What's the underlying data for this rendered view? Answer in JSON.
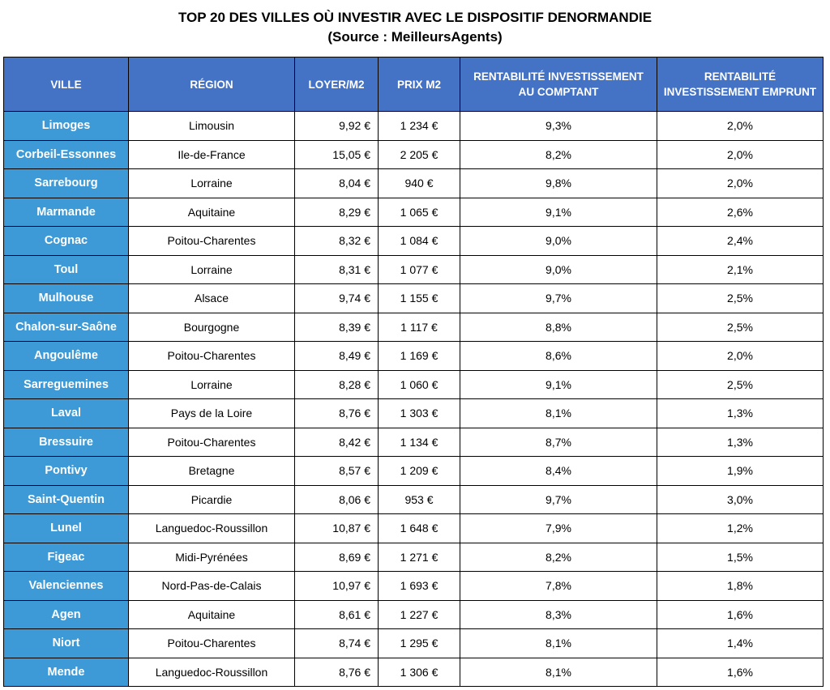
{
  "title": {
    "line1": "TOP 20 DES VILLES OÙ INVESTIR AVEC LE DISPOSITIF DENORMANDIE",
    "line2": "(Source : MeilleursAgents)"
  },
  "headers": {
    "ville": "VILLE",
    "region": "RÉGION",
    "loyer": "LOYER/M2",
    "prix": "PRIX M2",
    "comptant_line1": "RENTABILITÉ INVESTISSEMENT",
    "comptant_line2": "AU COMPTANT",
    "emprunt_line1": "RENTABILITÉ",
    "emprunt_line2": "INVESTISSEMENT EMPRUNT"
  },
  "colors": {
    "header_bg": "#4472c4",
    "city_bg": "#3d9ad6"
  },
  "rows": [
    {
      "ville": "Limoges",
      "region": "Limousin",
      "loyer": "9,92 €",
      "prix": "1 234 €",
      "comptant": "9,3%",
      "emprunt": "2,0%"
    },
    {
      "ville": "Corbeil-Essonnes",
      "region": "Ile-de-France",
      "loyer": "15,05 €",
      "prix": "2 205 €",
      "comptant": "8,2%",
      "emprunt": "2,0%"
    },
    {
      "ville": "Sarrebourg",
      "region": "Lorraine",
      "loyer": "8,04 €",
      "prix": "940 €",
      "comptant": "9,8%",
      "emprunt": "2,0%"
    },
    {
      "ville": "Marmande",
      "region": "Aquitaine",
      "loyer": "8,29 €",
      "prix": "1 065 €",
      "comptant": "9,1%",
      "emprunt": "2,6%"
    },
    {
      "ville": "Cognac",
      "region": "Poitou-Charentes",
      "loyer": "8,32 €",
      "prix": "1 084 €",
      "comptant": "9,0%",
      "emprunt": "2,4%"
    },
    {
      "ville": "Toul",
      "region": "Lorraine",
      "loyer": "8,31 €",
      "prix": "1 077 €",
      "comptant": "9,0%",
      "emprunt": "2,1%"
    },
    {
      "ville": "Mulhouse",
      "region": "Alsace",
      "loyer": "9,74 €",
      "prix": "1 155 €",
      "comptant": "9,7%",
      "emprunt": "2,5%"
    },
    {
      "ville": "Chalon-sur-Saône",
      "region": "Bourgogne",
      "loyer": "8,39 €",
      "prix": "1 117 €",
      "comptant": "8,8%",
      "emprunt": "2,5%"
    },
    {
      "ville": "Angoulême",
      "region": "Poitou-Charentes",
      "loyer": "8,49 €",
      "prix": "1 169 €",
      "comptant": "8,6%",
      "emprunt": "2,0%"
    },
    {
      "ville": "Sarreguemines",
      "region": "Lorraine",
      "loyer": "8,28 €",
      "prix": "1 060 €",
      "comptant": "9,1%",
      "emprunt": "2,5%"
    },
    {
      "ville": "Laval",
      "region": "Pays de la Loire",
      "loyer": "8,76 €",
      "prix": "1 303 €",
      "comptant": "8,1%",
      "emprunt": "1,3%"
    },
    {
      "ville": "Bressuire",
      "region": "Poitou-Charentes",
      "loyer": "8,42 €",
      "prix": "1 134 €",
      "comptant": "8,7%",
      "emprunt": "1,3%"
    },
    {
      "ville": "Pontivy",
      "region": "Bretagne",
      "loyer": "8,57 €",
      "prix": "1 209 €",
      "comptant": "8,4%",
      "emprunt": "1,9%"
    },
    {
      "ville": "Saint-Quentin",
      "region": "Picardie",
      "loyer": "8,06 €",
      "prix": "953 €",
      "comptant": "9,7%",
      "emprunt": "3,0%"
    },
    {
      "ville": "Lunel",
      "region": "Languedoc-Roussillon",
      "loyer": "10,87 €",
      "prix": "1 648 €",
      "comptant": "7,9%",
      "emprunt": "1,2%"
    },
    {
      "ville": "Figeac",
      "region": "Midi-Pyrénées",
      "loyer": "8,69 €",
      "prix": "1 271 €",
      "comptant": "8,2%",
      "emprunt": "1,5%"
    },
    {
      "ville": "Valenciennes",
      "region": "Nord-Pas-de-Calais",
      "loyer": "10,97 €",
      "prix": "1 693 €",
      "comptant": "7,8%",
      "emprunt": "1,8%"
    },
    {
      "ville": "Agen",
      "region": "Aquitaine",
      "loyer": "8,61 €",
      "prix": "1 227 €",
      "comptant": "8,3%",
      "emprunt": "1,6%"
    },
    {
      "ville": "Niort",
      "region": "Poitou-Charentes",
      "loyer": "8,74 €",
      "prix": "1 295 €",
      "comptant": "8,1%",
      "emprunt": "1,4%"
    },
    {
      "ville": "Mende",
      "region": "Languedoc-Roussillon",
      "loyer": "8,76 €",
      "prix": "1 306 €",
      "comptant": "8,1%",
      "emprunt": "1,6%"
    }
  ]
}
